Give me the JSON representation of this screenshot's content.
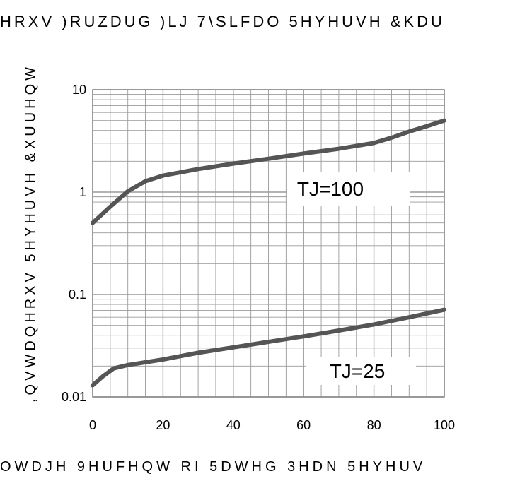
{
  "chart_data": {
    "type": "line",
    "title_fragments": [
      "HRXV )RUZDUG",
      ")LJ  7\\SLFDO 5HYHUVH &KDU"
    ],
    "ylabel": ",QVWDQHRXV 5HYHUVH &XUUHQW",
    "xlabel": "OWDJH 9HUFHQW RI 5DWHG 3HDN 5HYHUV",
    "x_ticks": [
      "0",
      "20",
      "40",
      "60",
      "80",
      "100"
    ],
    "y_ticks": [
      "0.01",
      "0.1",
      "1",
      "10"
    ],
    "xlim": [
      0,
      100
    ],
    "ylim": [
      0.01,
      10
    ],
    "y_scale": "log",
    "grid": true,
    "series": [
      {
        "name": "TJ=100",
        "x": [
          0,
          5,
          10,
          15,
          20,
          30,
          40,
          50,
          60,
          70,
          80,
          85,
          90,
          95,
          100
        ],
        "y": [
          0.5,
          0.72,
          1.02,
          1.28,
          1.45,
          1.68,
          1.9,
          2.12,
          2.38,
          2.65,
          3.02,
          3.4,
          3.9,
          4.4,
          5.0
        ]
      },
      {
        "name": "TJ=25",
        "x": [
          0,
          3,
          6,
          10,
          20,
          30,
          40,
          50,
          60,
          70,
          80,
          90,
          100
        ],
        "y": [
          0.013,
          0.016,
          0.019,
          0.0205,
          0.0232,
          0.027,
          0.0305,
          0.0345,
          0.039,
          0.0445,
          0.051,
          0.06,
          0.071
        ]
      }
    ]
  }
}
